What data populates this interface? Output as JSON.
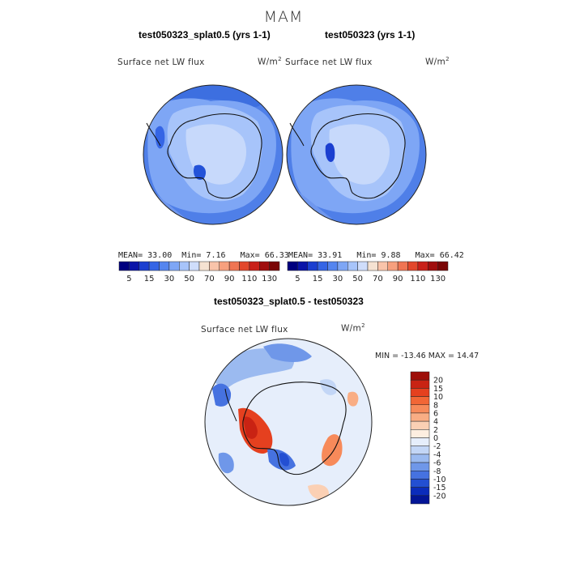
{
  "figure": {
    "season": "MAM"
  },
  "panels": [
    {
      "title": "test050323_splat0.5 (yrs 1-1)",
      "variable": "Surface net LW flux",
      "units": "W/m",
      "units_exp": "2",
      "stats": {
        "mean_label": "MEAN=",
        "mean": "33.00",
        "min_label": "Min=",
        "min": "7.16",
        "max_label": "Max=",
        "max": "66.33"
      }
    },
    {
      "title": "test050323 (yrs 1-1)",
      "variable": "Surface net LW flux",
      "units": "W/m",
      "units_exp": "2",
      "stats": {
        "mean_label": "MEAN=",
        "mean": "33.91",
        "min_label": "Min=",
        "min": "9.88",
        "max_label": "Max=",
        "max": "66.42"
      }
    }
  ],
  "diff_panel": {
    "title": "test050323_splat0.5 - test050323",
    "variable": "Surface net LW flux",
    "units": "W/m",
    "units_exp": "2",
    "minmax_text": "MIN = -13.46  MAX =  14.47"
  },
  "chart_data": [
    {
      "type": "heatmap",
      "title": "test050323_splat0.5 (yrs 1-1)",
      "projection": "south polar stereographic",
      "variable": "Surface net LW flux",
      "units": "W/m2",
      "stats": {
        "mean": 33.0,
        "min": 7.16,
        "max": 66.33
      },
      "colorbar": {
        "orientation": "horizontal",
        "ticks": [
          "5",
          "15",
          "30",
          "50",
          "70",
          "90",
          "110",
          "130"
        ],
        "colors": [
          "#00007f",
          "#0a14a8",
          "#1b3fd0",
          "#3565e5",
          "#5585ef",
          "#7ea6f5",
          "#a7c4fa",
          "#cfddfb",
          "#f5e2d2",
          "#f9c4aa",
          "#f7a07e",
          "#ef7553",
          "#e2482c",
          "#c9211a",
          "#a00d0d",
          "#7a0505"
        ]
      }
    },
    {
      "type": "heatmap",
      "title": "test050323 (yrs 1-1)",
      "projection": "south polar stereographic",
      "variable": "Surface net LW flux",
      "units": "W/m2",
      "stats": {
        "mean": 33.91,
        "min": 9.88,
        "max": 66.42
      },
      "colorbar": {
        "orientation": "horizontal",
        "ticks": [
          "5",
          "15",
          "30",
          "50",
          "70",
          "90",
          "110",
          "130"
        ],
        "colors": [
          "#00007f",
          "#0a14a8",
          "#1b3fd0",
          "#3565e5",
          "#5585ef",
          "#7ea6f5",
          "#a7c4fa",
          "#cfddfb",
          "#f5e2d2",
          "#f9c4aa",
          "#f7a07e",
          "#ef7553",
          "#e2482c",
          "#c9211a",
          "#a00d0d",
          "#7a0505"
        ]
      }
    },
    {
      "type": "heatmap",
      "title": "test050323_splat0.5 - test050323",
      "projection": "south polar stereographic",
      "variable": "Surface net LW flux",
      "units": "W/m2",
      "stats": {
        "min": -13.46,
        "max": 14.47
      },
      "colorbar": {
        "orientation": "vertical",
        "ticks": [
          "20",
          "15",
          "10",
          "8",
          "6",
          "4",
          "2",
          "0",
          "-2",
          "-4",
          "-6",
          "-8",
          "-10",
          "-15",
          "-20"
        ],
        "colors": [
          "#9e0e08",
          "#c92313",
          "#e5401f",
          "#f26636",
          "#f78a5a",
          "#f9ad84",
          "#fbd0b4",
          "#fdeee0",
          "#e6eefb",
          "#c3d6f6",
          "#9bbaf0",
          "#6f97e9",
          "#4672e0",
          "#234fd2",
          "#0b2cbb",
          "#031596"
        ]
      }
    }
  ]
}
